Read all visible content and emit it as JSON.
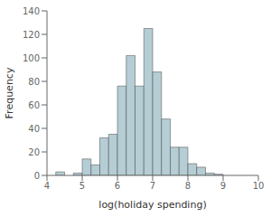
{
  "chart_data": {
    "type": "histogram",
    "x": [
      4.25,
      4.75,
      5.0,
      5.25,
      5.5,
      5.75,
      6.0,
      6.25,
      6.5,
      6.75,
      7.0,
      7.25,
      7.5,
      7.75,
      8.0,
      8.25,
      8.5,
      8.75,
      9.0
    ],
    "values": [
      3,
      2,
      14,
      9,
      32,
      35,
      76,
      102,
      76,
      125,
      88,
      48,
      24,
      24,
      10,
      7,
      2,
      1,
      0
    ],
    "bin_width": 0.25,
    "color": "#b5cdd4",
    "x_label": "log(holiday spending)",
    "y_label": "Frequency",
    "xlim": [
      4,
      10
    ],
    "ylim": [
      0,
      140
    ],
    "xticks": [
      4,
      5,
      6,
      7,
      8,
      9,
      10
    ],
    "yticks": [
      0,
      20,
      40,
      60,
      80,
      100,
      120,
      140
    ],
    "grid": false
  }
}
